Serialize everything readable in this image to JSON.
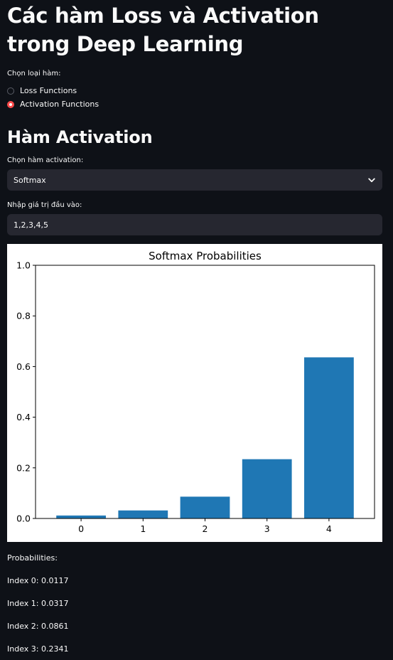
{
  "title": "Các hàm Loss và Activation trong Deep Learning",
  "function_type": {
    "label": "Chọn loại hàm:",
    "options": [
      {
        "label": "Loss Functions",
        "checked": false
      },
      {
        "label": "Activation Functions",
        "checked": true
      }
    ]
  },
  "section_title": "Hàm Activation",
  "activation_select": {
    "label": "Chọn hàm activation:",
    "value": "Softmax",
    "icon": "chevron-down-icon"
  },
  "input": {
    "label": "Nhập giá trị đầu vào:",
    "value": "1,2,3,4,5"
  },
  "chart_data": {
    "type": "bar",
    "title": "Softmax Probabilities",
    "categories": [
      "0",
      "1",
      "2",
      "3",
      "4"
    ],
    "values": [
      0.0117,
      0.0317,
      0.0861,
      0.2341,
      0.6364
    ],
    "ylim": [
      0,
      1.0
    ],
    "yticks": [
      "0.0",
      "0.2",
      "0.4",
      "0.6",
      "0.8",
      "1.0"
    ],
    "xlabel": "",
    "ylabel": "",
    "bar_color": "#1f77b4",
    "grid": false
  },
  "results": {
    "header": "Probabilities:",
    "lines": [
      "Index 0: 0.0117",
      "Index 1: 0.0317",
      "Index 2: 0.0861",
      "Index 3: 0.2341"
    ]
  },
  "colors": {
    "background": "#0e1117",
    "widget_bg": "#262730",
    "accent": "#ff4b4b",
    "text": "#fafafa"
  }
}
